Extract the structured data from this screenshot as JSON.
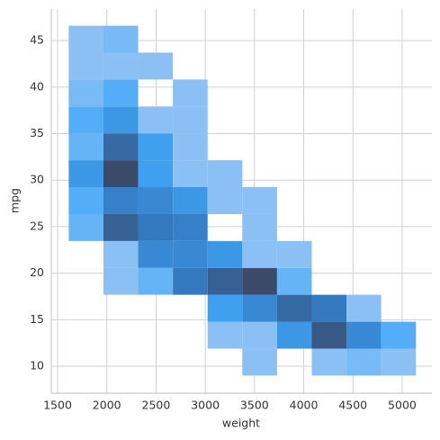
{
  "chart_data": {
    "type": "hist2d",
    "x_label": "weight",
    "y_label": "mpg",
    "x_edges": [
      1613,
      1965.7,
      2318.4,
      2671.1,
      3023.8,
      3376.5,
      3729.2,
      4081.9,
      4434.6,
      4787.3,
      5140
    ],
    "y_edges": [
      9,
      11.89,
      14.78,
      17.68,
      20.57,
      23.46,
      26.35,
      29.25,
      32.14,
      35.03,
      37.92,
      40.82,
      43.71,
      46.6
    ],
    "counts": [
      [
        0,
        0,
        0,
        0,
        0,
        2,
        0,
        2,
        3,
        2
      ],
      [
        0,
        0,
        0,
        0,
        2,
        2,
        8,
        16,
        10,
        5
      ],
      [
        0,
        0,
        0,
        0,
        7,
        10,
        14,
        12,
        2,
        0
      ],
      [
        0,
        2,
        4,
        12,
        15,
        18,
        4,
        0,
        0,
        0
      ],
      [
        0,
        2,
        10,
        10,
        8,
        2,
        2,
        0,
        0,
        0
      ],
      [
        4,
        15,
        12,
        11,
        0,
        2,
        0,
        0,
        0,
        0
      ],
      [
        5,
        11,
        10,
        8,
        2,
        2,
        0,
        0,
        0,
        0
      ],
      [
        8,
        18,
        7,
        2,
        2,
        0,
        0,
        0,
        0,
        0
      ],
      [
        4,
        14,
        7,
        2,
        0,
        0,
        0,
        0,
        0,
        0
      ],
      [
        5,
        8,
        2,
        2,
        0,
        0,
        0,
        0,
        0,
        0
      ],
      [
        3,
        5,
        0,
        2,
        0,
        0,
        0,
        0,
        0,
        0
      ],
      [
        2,
        2,
        2,
        0,
        0,
        0,
        0,
        0,
        0,
        0
      ],
      [
        2,
        3,
        0,
        0,
        0,
        0,
        0,
        0,
        0,
        0
      ]
    ],
    "colormap": [
      "#b0ccf2",
      "#40a8f8",
      "#3478c0",
      "#3a4a68"
    ],
    "xlim": [
      1436,
      5302
    ],
    "ylim": [
      7.1,
      48.4
    ],
    "xticks": [
      1500,
      2000,
      2500,
      3000,
      3500,
      4000,
      4500,
      5000
    ],
    "yticks": [
      10,
      15,
      20,
      25,
      30,
      35,
      40,
      45
    ],
    "grid": true
  }
}
